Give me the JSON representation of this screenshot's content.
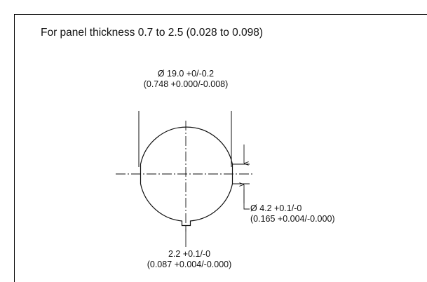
{
  "title": "For panel thickness 0.7 to 2.5 (0.028 to 0.098)",
  "dimensions": {
    "cutout_diameter": {
      "metric": "Ø 19.0 +0/-0.2",
      "imperial": "(0.748 +0.000/-0.008)"
    },
    "flat_width": {
      "metric": "Ø 4.2 +0.1/-0",
      "imperial": "(0.165 +0.004/-0.000)"
    },
    "key_slot_width": {
      "metric": "2.2 +0.1/-0",
      "imperial": "(0.087 +0.004/-0.000)"
    }
  }
}
